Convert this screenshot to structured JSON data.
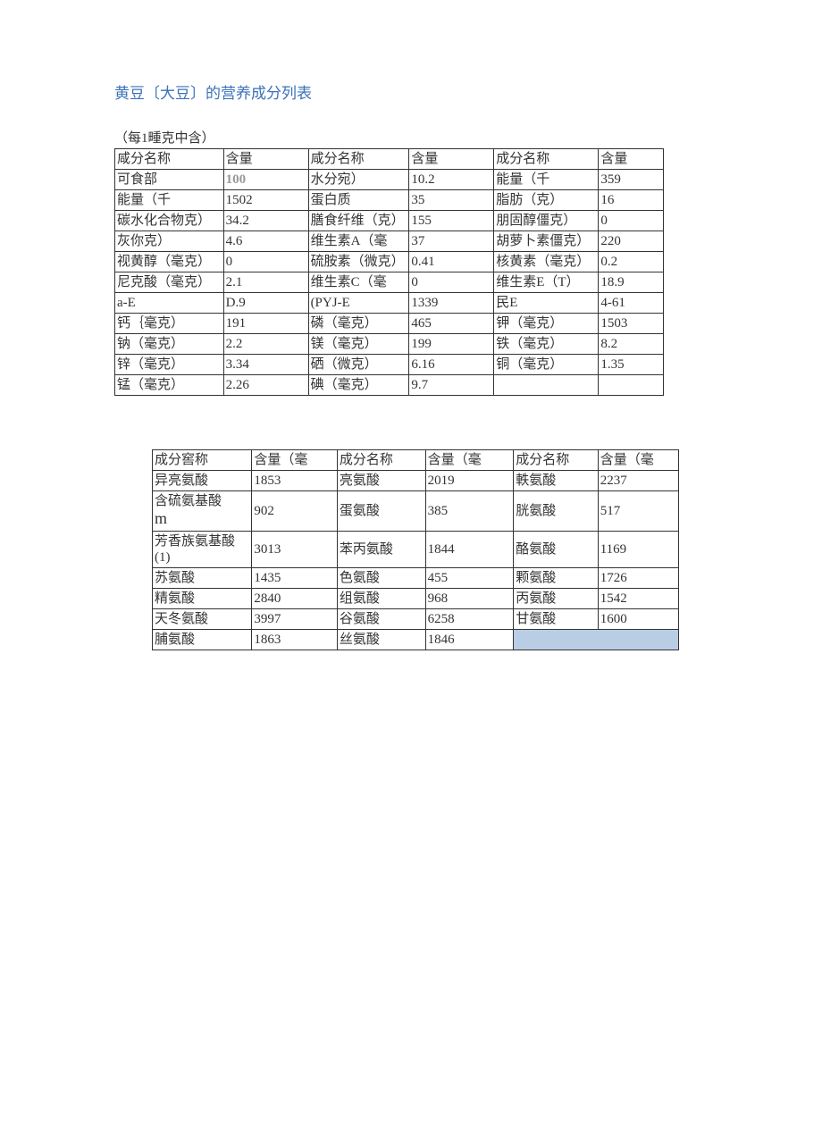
{
  "title": "黄豆〔大豆〕的营养成分列表",
  "subtitle": "（每1畽克中含）",
  "table1": {
    "headers": [
      "咸分名称",
      "含量",
      "咸分名称",
      "含量",
      "成分名称",
      "含量"
    ],
    "rows": [
      [
        "可食部",
        "100",
        "水分宛）",
        "10.2",
        "能量（千",
        "359"
      ],
      [
        "能量（千",
        "1502",
        "蛋白质",
        "35",
        "脂肪（克）",
        "16"
      ],
      [
        "碳水化合物克）",
        "34.2",
        "膳食纤维（克）",
        "155",
        "朋固醇僵克）",
        "0"
      ],
      [
        "灰你克）",
        "4.6",
        "维生素A（毫",
        "37",
        "胡萝卜素僵克）",
        "220"
      ],
      [
        "视黄醇（毫克）",
        "0",
        "硫胺素（微克）",
        "0.41",
        "核黄素（毫克）",
        "0.2"
      ],
      [
        "尼克酸（毫克）",
        "2.1",
        "维生素C（毫",
        "0",
        "维生素E（T）",
        "18.9"
      ],
      [
        "a-E",
        "D.9",
        "(PYJ-E",
        "1339",
        "民E",
        "4-61"
      ],
      [
        "钙｛毫克）",
        "191",
        "磷（毫克）",
        "465",
        "钾（毫克）",
        "1503"
      ],
      [
        "钠（毫克）",
        "2.2",
        "镁（毫克）",
        "199",
        "铁（毫克）",
        "8.2"
      ],
      [
        "锌（毫克）",
        "3.34",
        "硒（微克）",
        "6.16",
        "铜（毫克）",
        "1.35"
      ],
      [
        "锰（毫克）",
        "2.26",
        "碘（毫克）",
        "9.7",
        "",
        ""
      ]
    ]
  },
  "table2": {
    "headers": [
      "成分窖称",
      "含量（毫",
      "成分名称",
      "含量（毫",
      "成分名称",
      "含量（毫"
    ],
    "rows": [
      [
        "异亮氨酸",
        "1853",
        "亮氨酸",
        "2019",
        "軼氨酸",
        "2237"
      ],
      [
        "含硫氨基酸m",
        "902",
        "蛋氨酸",
        "385",
        "胱氨酸",
        "517"
      ],
      [
        "芳香族氨基酸(1)",
        "3013",
        "苯丙氨酸",
        "1844",
        "酪氨酸",
        "1169"
      ],
      [
        "苏氨酸",
        "1435",
        "色氨酸",
        "455",
        "颗氨酸",
        "1726"
      ],
      [
        "精氨酸",
        "2840",
        "组氨酸",
        "968",
        "丙氨酸",
        "1542"
      ],
      [
        "天冬氨酸",
        "3997",
        "谷氨酸",
        "6258",
        "甘氨酸",
        "1600"
      ],
      [
        "脯氨酸",
        "1863",
        "丝氨酸",
        "1846",
        "",
        ""
      ]
    ]
  }
}
